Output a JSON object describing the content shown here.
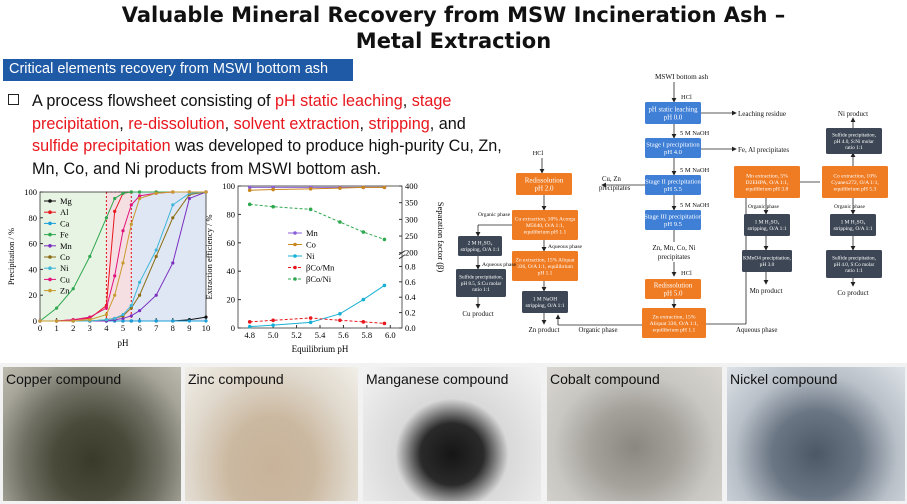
{
  "title": {
    "line1": "Valuable Mineral Recovery from MSW Incineration Ash –",
    "line2": "Metal Extraction"
  },
  "section_banner": "Critical elements recovery from MSWI bottom ash",
  "bullet": {
    "t1": "A process flowsheet consisting of ",
    "h1": "pH static leaching",
    "t2": ", ",
    "h2": "stage precipitation",
    "t3": ", ",
    "h3": "re-dissolution",
    "t4": ", ",
    "h4": "solvent extraction",
    "t5": ", ",
    "h5": "stripping",
    "t6": ", and ",
    "h6": "sulfide precipitation",
    "t7": " was developed to produce high-purity Cu, Zn, Mn, Co, and Ni products from MSWI bottom ash."
  },
  "colors": {
    "accent_blue": "#1f5aa6",
    "highlight_red": "#e8161d"
  },
  "chart_data": [
    {
      "type": "line",
      "xlabel": "pH",
      "ylabel": "Precipitation / %",
      "xlim": [
        0,
        10
      ],
      "ylim": [
        0,
        100
      ],
      "x_ticks": [
        "0",
        "1",
        "2",
        "3",
        "4",
        "5",
        "6",
        "7",
        "8",
        "9",
        "10"
      ],
      "y_ticks": [
        "0",
        "20",
        "40",
        "60",
        "80",
        "100"
      ],
      "x": [
        0,
        1,
        2,
        3,
        4,
        4.5,
        5,
        5.5,
        6,
        7,
        8,
        9,
        10
      ],
      "series": [
        {
          "name": "Mg",
          "color": "#111111",
          "values": [
            0,
            0,
            0,
            0,
            0,
            0,
            0,
            0,
            0,
            0,
            0,
            1,
            3
          ]
        },
        {
          "name": "Al",
          "color": "#e8161d",
          "values": [
            0,
            0,
            1,
            2,
            12,
            85,
            99,
            100,
            100,
            100,
            100,
            100,
            100
          ]
        },
        {
          "name": "Ca",
          "color": "#1a9fd9",
          "values": [
            0,
            0,
            0,
            0,
            0,
            0,
            0,
            0,
            0,
            0,
            0,
            0,
            0
          ]
        },
        {
          "name": "Fe",
          "color": "#2fa84f",
          "values": [
            0,
            10,
            25,
            50,
            80,
            95,
            99,
            100,
            100,
            100,
            100,
            100,
            100
          ]
        },
        {
          "name": "Mn",
          "color": "#7a2fbf",
          "values": [
            0,
            0,
            0,
            0,
            0,
            1,
            2,
            4,
            8,
            20,
            45,
            95,
            100
          ]
        },
        {
          "name": "Co",
          "color": "#8a6d14",
          "values": [
            0,
            0,
            0,
            0,
            1,
            2,
            4,
            10,
            20,
            50,
            80,
            98,
            100
          ]
        },
        {
          "name": "Ni",
          "color": "#3fb6d9",
          "values": [
            0,
            0,
            0,
            0,
            1,
            2,
            5,
            12,
            30,
            55,
            90,
            99,
            100
          ]
        },
        {
          "name": "Cu",
          "color": "#e0137a",
          "values": [
            0,
            0,
            1,
            3,
            10,
            35,
            70,
            90,
            97,
            99,
            100,
            100,
            100
          ]
        },
        {
          "name": "Zn",
          "color": "#c99a2e",
          "values": [
            0,
            0,
            0,
            1,
            5,
            20,
            45,
            75,
            95,
            99,
            100,
            100,
            100
          ]
        }
      ]
    },
    {
      "type": "line",
      "xlabel": "Equilibrium pH",
      "ylabel": "Extraction efficiency / %",
      "y2label": "Separation factor (β)",
      "xlim": [
        4.7,
        6.1
      ],
      "ylim": [
        0,
        100
      ],
      "y2lim": [
        0,
        400
      ],
      "x_ticks": [
        "4.8",
        "5.0",
        "5.2",
        "5.4",
        "5.6",
        "5.8",
        "6.0"
      ],
      "y_ticks": [
        "0",
        "20",
        "40",
        "60",
        "80",
        "100"
      ],
      "y2_ticks_upper": [
        "200",
        "250",
        "300",
        "350",
        "400"
      ],
      "y2_ticks_lower": [
        "0.0",
        "0.2",
        "0.4",
        "0.6",
        "0.8"
      ],
      "x": [
        4.8,
        5.0,
        5.32,
        5.57,
        5.77,
        5.95
      ],
      "series": [
        {
          "name": "Mn",
          "color": "#8b5fd9",
          "values": [
            99,
            99,
            99,
            99,
            99,
            99
          ]
        },
        {
          "name": "Co",
          "color": "#c8861e",
          "values": [
            97,
            97.5,
            98,
            98.5,
            99,
            99
          ]
        },
        {
          "name": "Ni",
          "color": "#1ab0d6",
          "values": [
            1,
            2,
            4,
            10,
            20,
            30
          ]
        },
        {
          "name": "βCo/Mn",
          "color": "#e8161d",
          "axis": "y2_lower",
          "values": [
            0.08,
            0.1,
            0.13,
            0.1,
            0.08,
            0.06
          ]
        },
        {
          "name": "βCo/Ni",
          "color": "#2fa84f",
          "axis": "y2_upper",
          "values": [
            345,
            338,
            330,
            292,
            262,
            240
          ]
        }
      ]
    }
  ],
  "flowsheet": {
    "feed": "MSWI bottom ash",
    "hcl": "HCl",
    "static_leach_1": "pH static leaching",
    "static_leach_2": "pH 0.0",
    "leach_residue": "Leaching residue",
    "naoh": "5 M NaOH",
    "stage1_1": "Stage I precipitation",
    "stage1_2": "pH 4.0",
    "fe_al": "Fe, Al precipitates",
    "stage2_1": "Stage II precipitation",
    "stage2_2": "pH 5.5",
    "cu_zn": "Cu, Zn",
    "cu_zn2": "precipitates",
    "stage3_1": "Stage III precipitation",
    "stage3_2": "pH 9.5",
    "redis_1": "Redissolution",
    "redis_2": "pH 2.0",
    "redis2_2": "pH 5.0",
    "cu_ext_1": "Cu extraction, 10% Acorga",
    "cu_ext_2": "M5640, O/A 1:1,",
    "cu_ext_3": "equilibrium pH 1.1",
    "organic": "Organic phase",
    "aqueous": "Aqueous phase",
    "cu_strip_1": "2 M H₂SO₄",
    "cu_strip_2": "stripping, O/A 1:1",
    "cu_sulf_1": "Sulfide precipitation,",
    "cu_sulf_2": "pH 8.5, S:Cu molar",
    "cu_sulf_3": "ratio 1:1",
    "cu_product": "Cu product",
    "zn_ext_1": "Zn extraction, 15% Aliquat",
    "zn_ext_2": "336, O/A 1:1, equilibrium",
    "zn_ext_3": "pH 1.1",
    "zn_strip_1": "1 M NaOH",
    "zn_strip_2": "stripping, O/A 1:1",
    "zn_product": "Zn product",
    "zmcn_1": "Zn, Mn, Co, Ni",
    "zmcn_2": "precipitates",
    "zn_ext2_1": "Zn extraction, 15%",
    "zn_ext2_2": "Aliquat 336, O/A 1:1,",
    "zn_ext2_3": "equilibrium pH 1.1",
    "organic_phase": "Organic phase",
    "aqueous_phase": "Aqueous phase",
    "mn_ext_1": "Mn extraction, 5%",
    "mn_ext_2": "D2EHPA, O/A 1:1,",
    "mn_ext_3": "equilibrium pH 3.8",
    "mn_strip_1": "1 M H₂SO₄",
    "mn_strip_2": "stripping, O/A 1:1",
    "kmno4_1": "KMnO4 precipitation,",
    "kmno4_2": "pH 3.0",
    "mn_product": "Mn product",
    "co_ext_1": "Co extraction, 10%",
    "co_ext_2": "Cyanex272, O/A 1:1,",
    "co_ext_3": "equilibrium pH 5.3",
    "co_strip_1": "1 M H₂SO₄",
    "co_strip_2": "stripping, O/A 1:1",
    "co_sulf_1": "Sulfide precipitation,",
    "co_sulf_2": "pH 4.0, S:Co molar",
    "co_sulf_3": "ratio 1:1",
    "co_product": "Co product",
    "ni_sulf_1": "Sulfide precipitation,",
    "ni_sulf_2": "pH 4.0, S:Ni molar",
    "ni_sulf_3": "ratio 1:1",
    "ni_product": "Ni product"
  },
  "photos": [
    {
      "label": "Copper compound"
    },
    {
      "label": "Zinc compound"
    },
    {
      "label": "Manganese compound"
    },
    {
      "label": "Cobalt compound"
    },
    {
      "label": "Nickel compound"
    }
  ]
}
